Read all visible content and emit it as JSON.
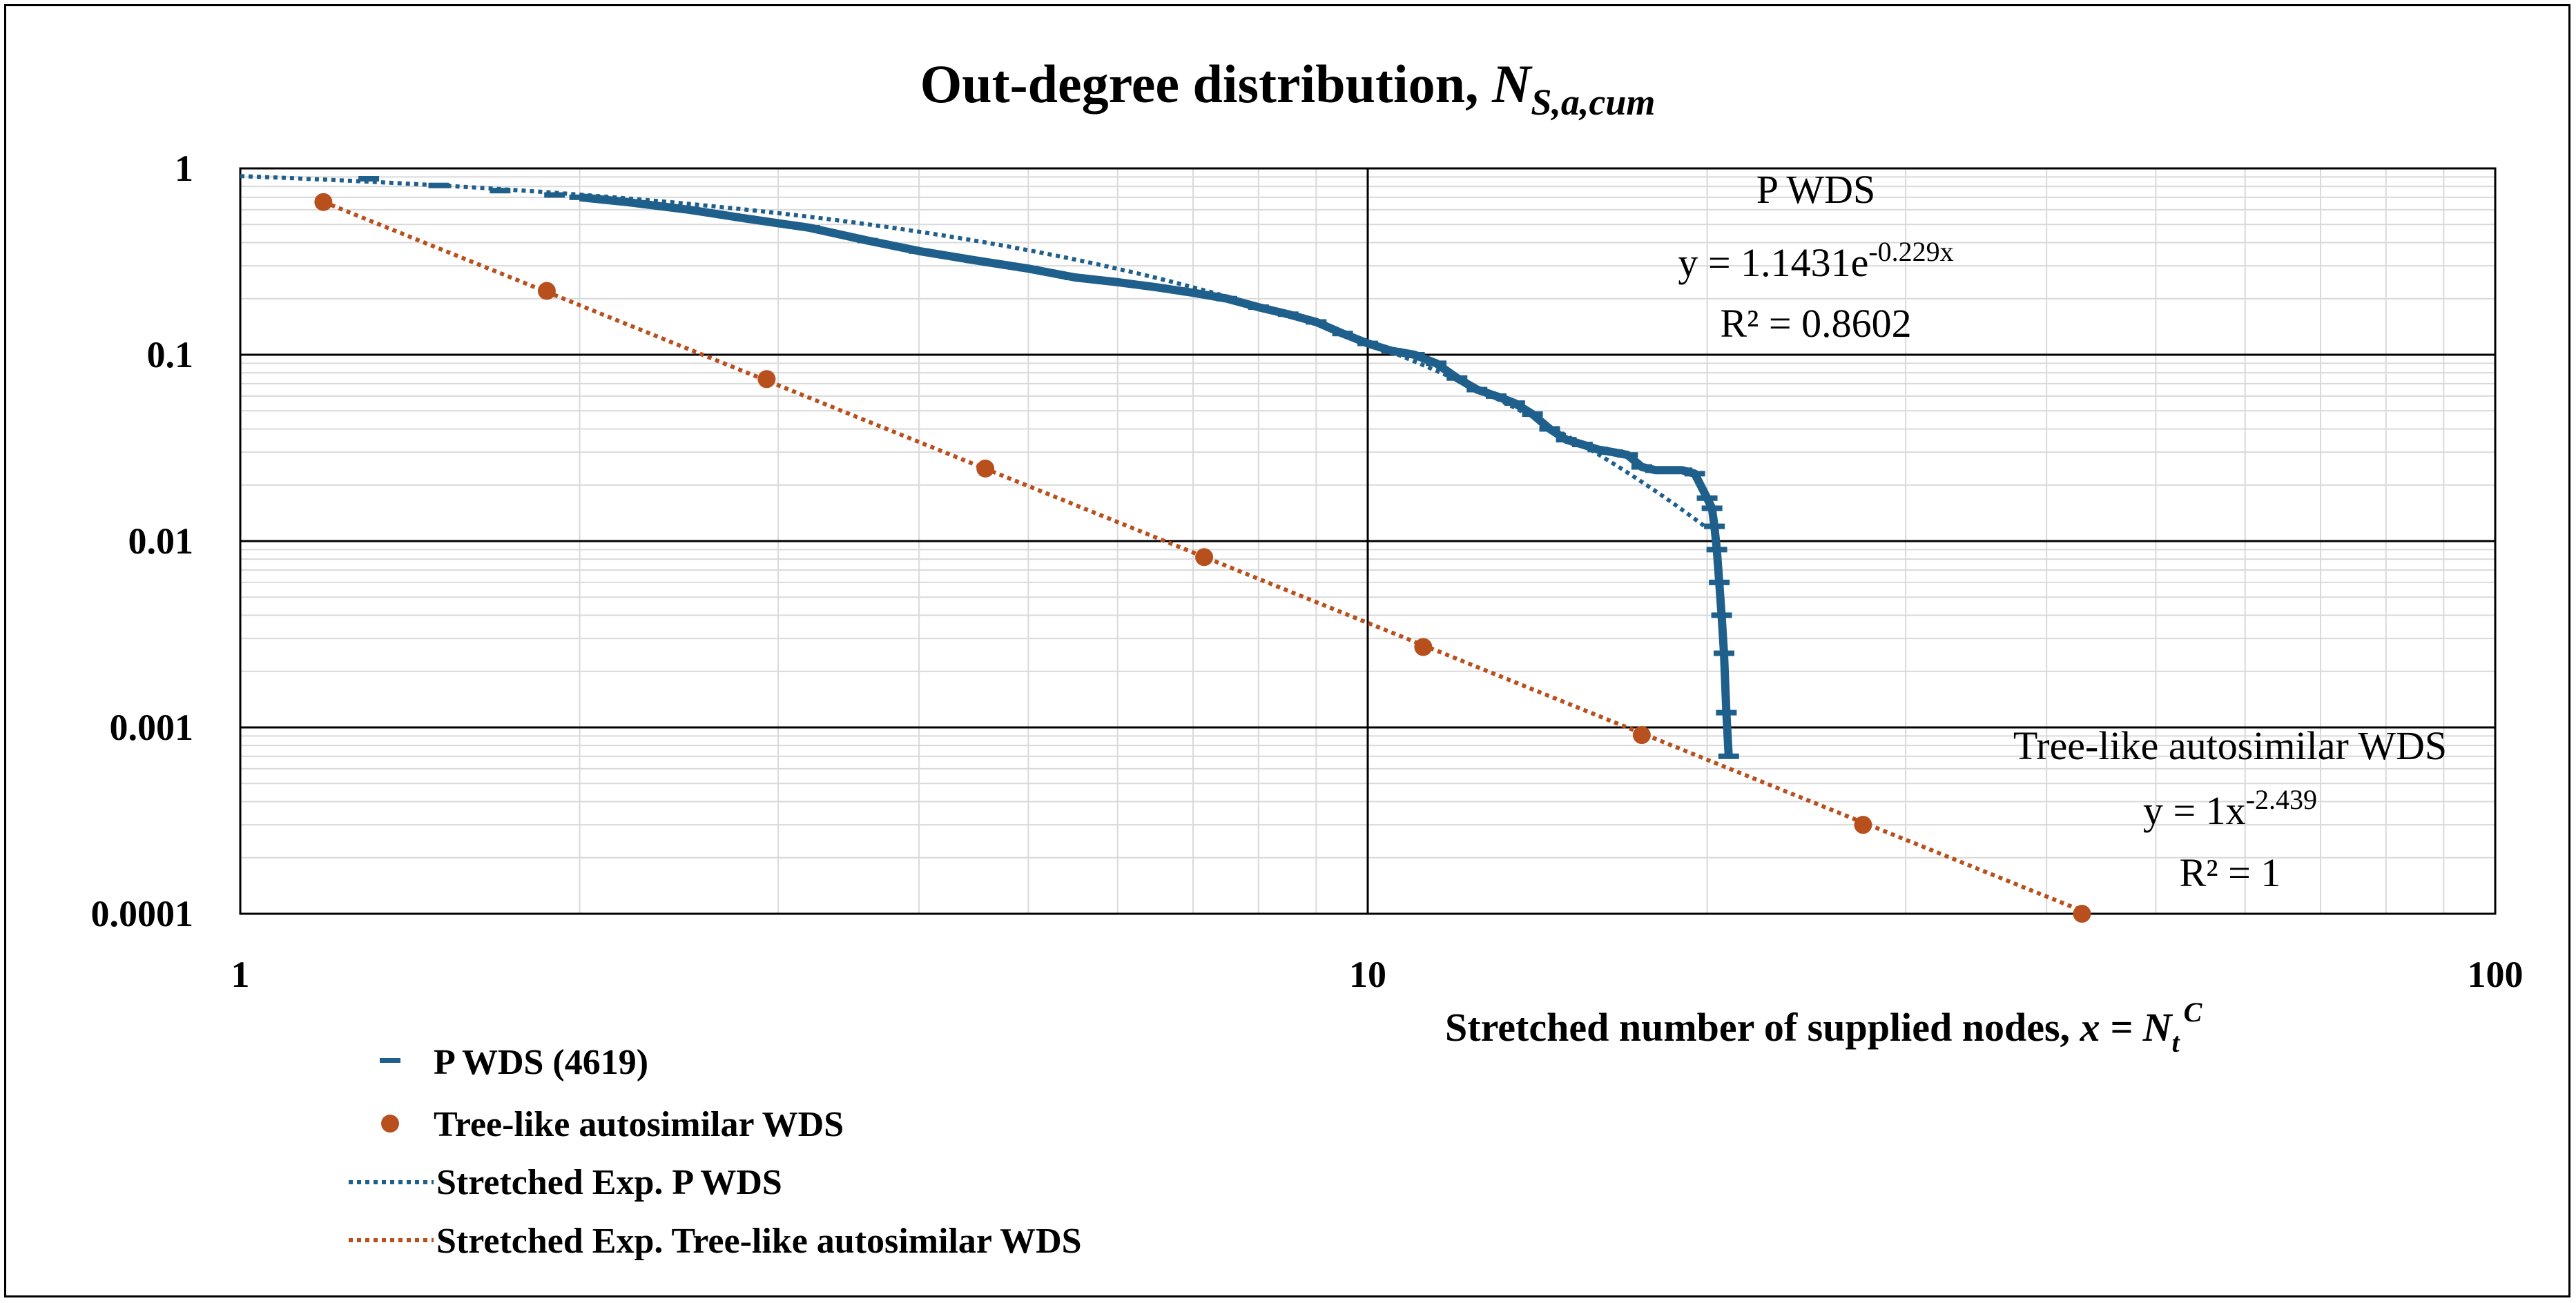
{
  "chart_data": {
    "type": "scatter",
    "title": "Out-degree distribution, ",
    "title_math": "N",
    "title_math_sub": "S,a,cum",
    "xlabel": "Stretched number of supplied nodes, ",
    "xlabel_math": "x = N",
    "xlabel_math_sub": "t",
    "xlabel_math_sup": "C",
    "ylabel": "",
    "x_scale": "log",
    "y_scale": "log",
    "xlim": [
      1,
      100
    ],
    "ylim": [
      0.0001,
      1
    ],
    "x_ticks": [
      "1",
      "10",
      "100"
    ],
    "y_ticks": [
      "1",
      "0.1",
      "0.01",
      "0.001",
      "0.0001"
    ],
    "grid": true,
    "legend_position": "bottom-left",
    "series": [
      {
        "name": "P WDS (4619)",
        "marker": "dash",
        "color": "#1f5f8b",
        "x": [
          1.3,
          1.5,
          1.7,
          1.9,
          2.0,
          2.2,
          2.5,
          2.8,
          3.2,
          3.6,
          4.0,
          4.5,
          5.0,
          5.5,
          6.0,
          6.5,
          7.0,
          7.5,
          8.0,
          8.5,
          9.0,
          9.5,
          10.0,
          10.5,
          11.0,
          11.5,
          12.0,
          12.5,
          13.0,
          13.5,
          14.0,
          14.5,
          15.0,
          15.5,
          16.0,
          16.5,
          17.0,
          17.5,
          18.0,
          18.5,
          19.0,
          19.5,
          20.0,
          20.2,
          20.3,
          20.4,
          20.5,
          20.6,
          20.7,
          20.8,
          20.9
        ],
        "y": [
          0.88,
          0.81,
          0.76,
          0.72,
          0.7,
          0.66,
          0.6,
          0.54,
          0.48,
          0.41,
          0.36,
          0.32,
          0.29,
          0.26,
          0.245,
          0.23,
          0.215,
          0.2,
          0.18,
          0.165,
          0.15,
          0.13,
          0.115,
          0.105,
          0.1,
          0.09,
          0.075,
          0.065,
          0.06,
          0.055,
          0.048,
          0.04,
          0.035,
          0.033,
          0.031,
          0.03,
          0.029,
          0.025,
          0.024,
          0.024,
          0.024,
          0.023,
          0.017,
          0.015,
          0.012,
          0.009,
          0.006,
          0.004,
          0.0025,
          0.0012,
          0.0007
        ]
      },
      {
        "name": "Tree-like autosimilar WDS",
        "marker": "circle",
        "color": "#b8501e",
        "x": [
          1.185,
          1.87,
          2.93,
          4.58,
          7.16,
          11.2,
          17.5,
          27.5,
          43.0
        ],
        "y": [
          0.66,
          0.22,
          0.074,
          0.0245,
          0.0082,
          0.0027,
          0.00091,
          0.0003,
          0.0001
        ]
      },
      {
        "name": "Stretched Exp. P WDS",
        "line": "dotted",
        "color": "#1f5f8b"
      },
      {
        "name": "Stretched Exp. Tree-like autosimilar WDS",
        "line": "dotted",
        "color": "#b8501e"
      }
    ],
    "annotations": {
      "p_title": "P WDS",
      "p_eq_base": "y = 1.1431e",
      "p_eq_exp": "-0.229x",
      "p_r2": "R² = 0.8602",
      "t_title": "Tree-like autosimilar WDS",
      "t_eq_base": "y = 1x",
      "t_eq_exp": "-2.439",
      "t_r2": "R² = 1"
    }
  }
}
